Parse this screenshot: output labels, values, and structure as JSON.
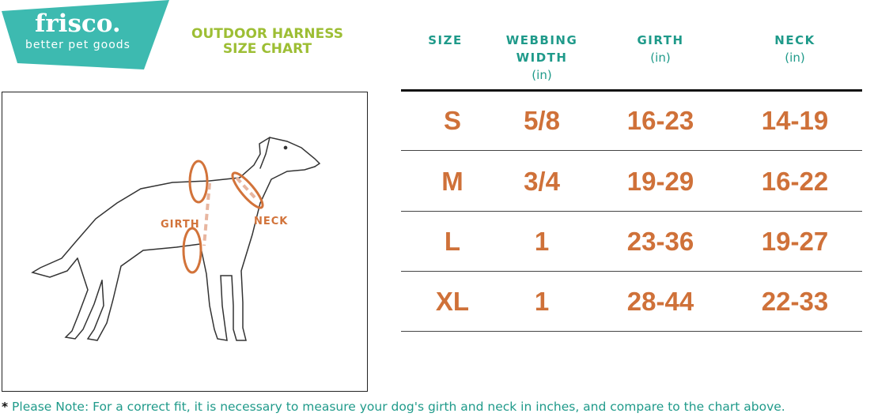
{
  "brand": {
    "name": "frisco.",
    "tagline": "better pet goods",
    "color": "#3dbab0"
  },
  "title": {
    "line1": "OUTDOOR HARNESS",
    "line2": "SIZE CHART"
  },
  "diagram": {
    "girth_label": "GIRTH",
    "neck_label": "NECK"
  },
  "table": {
    "headers": [
      {
        "label": "SIZE",
        "unit": ""
      },
      {
        "label": "WEBBING WIDTH",
        "unit": "(in)"
      },
      {
        "label": "GIRTH",
        "unit": "(in)"
      },
      {
        "label": "NECK",
        "unit": "(in)"
      }
    ],
    "rows": [
      [
        "S",
        "5/8",
        "16-23",
        "14-19"
      ],
      [
        "M",
        "3/4",
        "19-29",
        "16-22"
      ],
      [
        "L",
        "1",
        "23-36",
        "19-27"
      ],
      [
        "XL",
        "1",
        "28-44",
        "22-33"
      ]
    ]
  },
  "note": {
    "star": "*",
    "text": "Please Note: For a correct fit, it is necessary to measure your dog's girth and neck in inches, and compare to the chart above."
  },
  "colors": {
    "accent": "#d2733a",
    "header": "#1f9a8a",
    "title": "#9dbe34"
  }
}
